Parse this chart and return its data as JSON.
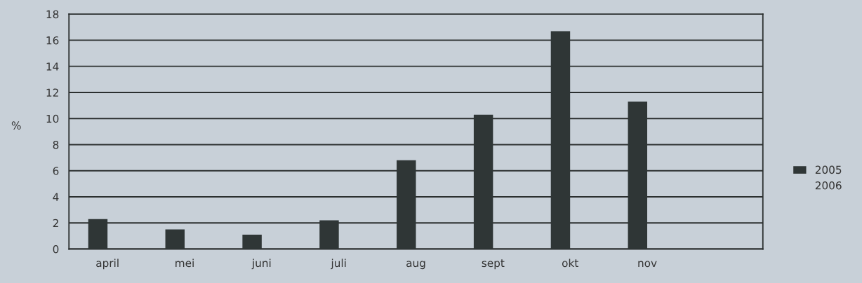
{
  "chart_data": {
    "type": "bar",
    "ylabel": "%",
    "categories": [
      "april",
      "mei",
      "juni",
      "juli",
      "aug",
      "sept",
      "okt",
      "nov",
      null
    ],
    "series": [
      {
        "name": "2005",
        "color": "#2f3636",
        "values": [
          2.3,
          1.5,
          1.1,
          2.2,
          6.8,
          10.3,
          16.7,
          11.3,
          null
        ]
      },
      {
        "name": "2006",
        "values": [
          null,
          null,
          null,
          null,
          null,
          null,
          null,
          null,
          null
        ]
      }
    ],
    "ylim": [
      0,
      18
    ],
    "yticks": [
      0,
      2,
      4,
      6,
      8,
      10,
      12,
      14,
      16,
      18
    ],
    "grid": "y",
    "legend": "right"
  }
}
